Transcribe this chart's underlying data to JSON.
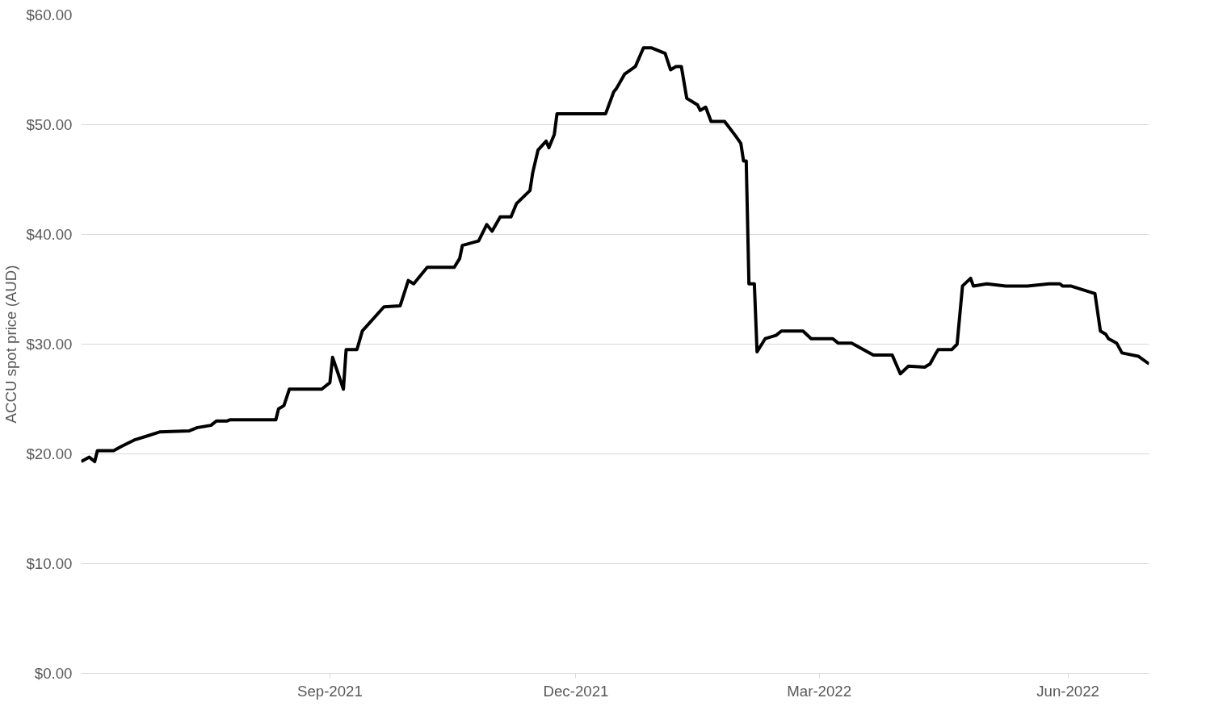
{
  "chart_data": {
    "type": "line",
    "ylabel": "ACCU spot price (AUD)",
    "x": [
      "2021-06-01",
      "2021-06-04",
      "2021-06-06",
      "2021-06-07",
      "2021-06-13",
      "2021-06-16",
      "2021-06-21",
      "2021-06-25",
      "2021-06-30",
      "2021-07-11",
      "2021-07-14",
      "2021-07-19",
      "2021-07-21",
      "2021-07-25",
      "2021-07-26",
      "2021-08-12",
      "2021-08-13",
      "2021-08-15",
      "2021-08-17",
      "2021-08-29",
      "2021-09-01",
      "2021-09-02",
      "2021-09-06",
      "2021-09-07",
      "2021-09-11",
      "2021-09-13",
      "2021-09-21",
      "2021-09-27",
      "2021-09-30",
      "2021-10-02",
      "2021-10-07",
      "2021-10-17",
      "2021-10-19",
      "2021-10-20",
      "2021-10-26",
      "2021-10-29",
      "2021-10-31",
      "2021-11-03",
      "2021-11-07",
      "2021-11-09",
      "2021-11-14",
      "2021-11-15",
      "2021-11-17",
      "2021-11-20",
      "2021-11-21",
      "2021-11-23",
      "2021-11-24",
      "2021-12-12",
      "2021-12-15",
      "2021-12-16",
      "2021-12-19",
      "2021-12-23",
      "2021-12-26",
      "2021-12-29",
      "2022-01-03",
      "2022-01-05",
      "2022-01-07",
      "2022-01-09",
      "2022-01-11",
      "2022-01-15",
      "2022-01-16",
      "2022-01-18",
      "2022-01-20",
      "2022-01-25",
      "2022-01-29",
      "2022-01-31",
      "2022-02-01",
      "2022-02-02",
      "2022-02-03",
      "2022-02-05",
      "2022-02-06",
      "2022-02-09",
      "2022-02-13",
      "2022-02-15",
      "2022-02-23",
      "2022-02-26",
      "2022-03-06",
      "2022-03-08",
      "2022-03-13",
      "2022-03-21",
      "2022-03-28",
      "2022-03-31",
      "2022-04-03",
      "2022-04-09",
      "2022-04-11",
      "2022-04-13",
      "2022-04-14",
      "2022-04-19",
      "2022-04-21",
      "2022-04-23",
      "2022-04-26",
      "2022-04-27",
      "2022-05-02",
      "2022-05-09",
      "2022-05-17",
      "2022-05-25",
      "2022-05-29",
      "2022-05-30",
      "2022-06-02",
      "2022-06-11",
      "2022-06-13",
      "2022-06-15",
      "2022-06-16",
      "2022-06-19",
      "2022-06-21",
      "2022-06-27",
      "2022-07-01"
    ],
    "series": [
      {
        "color": "#000000",
        "values": [
          19.3,
          19.7,
          19.3,
          20.3,
          20.3,
          20.7,
          21.3,
          21.6,
          22.0,
          22.1,
          22.4,
          22.6,
          23.0,
          23.0,
          23.1,
          23.1,
          24.1,
          24.4,
          25.9,
          25.9,
          26.5,
          28.8,
          25.9,
          29.5,
          29.5,
          31.2,
          33.4,
          33.5,
          35.8,
          35.5,
          37.0,
          37.0,
          37.8,
          39.0,
          39.4,
          40.9,
          40.3,
          41.6,
          41.6,
          42.8,
          44.0,
          45.6,
          47.7,
          48.5,
          47.9,
          49.1,
          51.0,
          51.0,
          53.0,
          53.3,
          54.6,
          55.3,
          57.0,
          57.0,
          56.5,
          55.0,
          55.3,
          55.3,
          52.4,
          51.8,
          51.3,
          51.6,
          50.3,
          50.3,
          49.0,
          48.3,
          46.7,
          46.7,
          35.5,
          35.5,
          29.3,
          30.5,
          30.8,
          31.2,
          31.2,
          30.5,
          30.5,
          30.1,
          30.1,
          29.0,
          29.0,
          27.3,
          28.0,
          27.9,
          28.2,
          29.1,
          29.5,
          29.5,
          30.0,
          35.3,
          36.0,
          35.3,
          35.5,
          35.3,
          35.3,
          35.5,
          35.5,
          35.3,
          35.3,
          34.6,
          31.2,
          30.9,
          30.5,
          30.1,
          29.2,
          28.9,
          28.2
        ]
      }
    ],
    "xlim": [
      "2021-06-01",
      "2022-07-01"
    ],
    "xticks": [
      {
        "value": "2021-09-01",
        "label": "Sep-2021"
      },
      {
        "value": "2021-12-01",
        "label": "Dec-2021"
      },
      {
        "value": "2022-03-01",
        "label": "Mar-2022"
      },
      {
        "value": "2022-06-01",
        "label": "Jun-2022"
      }
    ],
    "ylim": [
      0,
      60
    ],
    "yticks": [
      {
        "value": 0,
        "label": "$0.00"
      },
      {
        "value": 10,
        "label": "$10.00"
      },
      {
        "value": 20,
        "label": "$20.00"
      },
      {
        "value": 30,
        "label": "$30.00"
      },
      {
        "value": 40,
        "label": "$40.00"
      },
      {
        "value": 50,
        "label": "$50.00"
      },
      {
        "value": 60,
        "label": "$60.00"
      }
    ],
    "grid": "y",
    "marker": "none",
    "line_style": "solid"
  }
}
